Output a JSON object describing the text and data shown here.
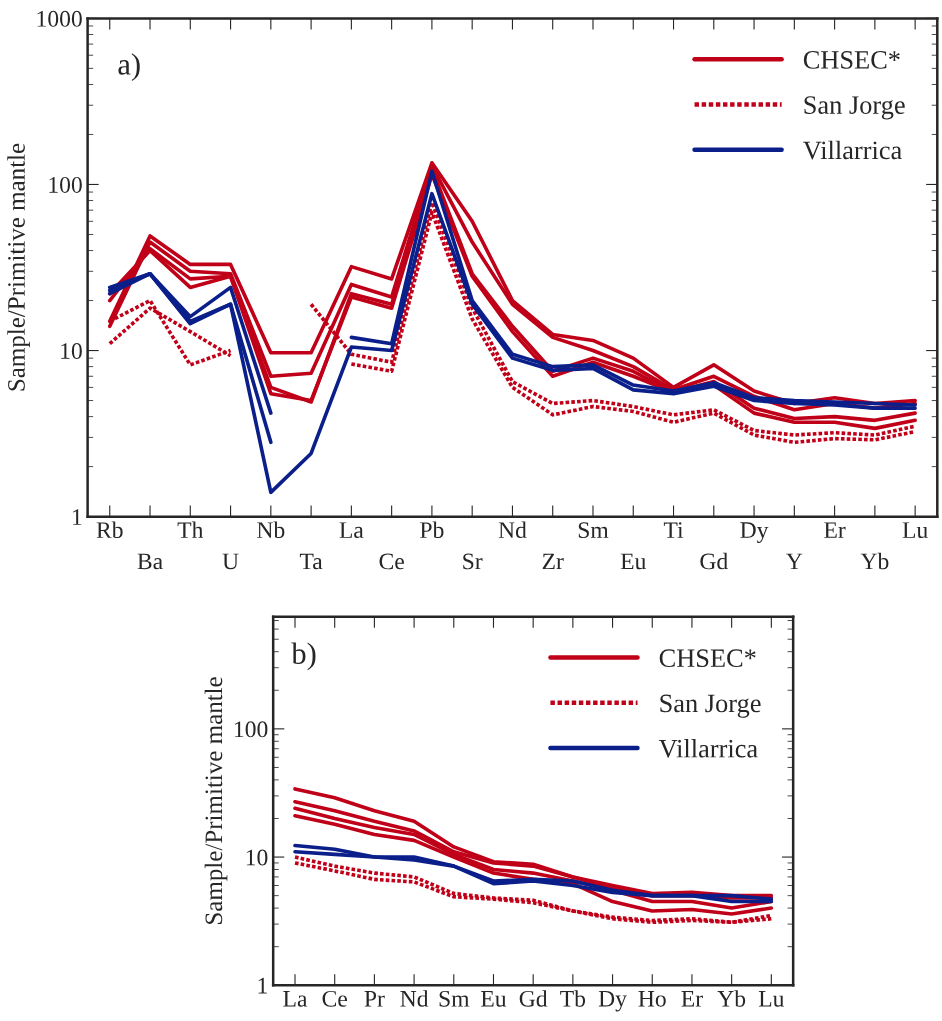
{
  "chart_data": [
    {
      "type": "line",
      "annotations": [
        "a)"
      ],
      "ylabel": "Sample/Primitive mantle",
      "log": "y",
      "ylim": [
        1,
        1000
      ],
      "yticks": [
        1,
        10,
        100,
        1000
      ],
      "legend": "top right",
      "grid": false,
      "marker": "none",
      "categories": [
        "Rb",
        "Ba",
        "Th",
        "U",
        "Nb",
        "Ta",
        "La",
        "Ce",
        "Pb",
        "Sr",
        "Nd",
        "Zr",
        "Sm",
        "Eu",
        "Ti",
        "Gd",
        "Dy",
        "Y",
        "Er",
        "Yb",
        "Lu"
      ],
      "series": [
        {
          "name": "CHSEC*",
          "color": "#c00018",
          "line_style": "solid",
          "values": [
            15,
            49,
            33,
            33,
            9.7,
            9.7,
            32,
            27,
            135,
            60,
            20,
            12.5,
            11.5,
            9,
            6,
            8.2,
            5.7,
            4.8,
            5.2,
            4.8,
            5.0
          ]
        },
        {
          "color": "#c00018",
          "line_style": "solid",
          "values": [
            14,
            45,
            30,
            29,
            7,
            7.3,
            25,
            21,
            130,
            45,
            19,
            12,
            10,
            8,
            5.8,
            7,
            5.3,
            4.4,
            4.8,
            4.5,
            4.8
          ]
        },
        {
          "color": "#c00018",
          "line_style": "solid",
          "values": [
            20,
            41,
            27,
            28,
            6,
            4.9,
            22,
            19,
            125,
            29,
            14,
            7.5,
            9,
            7.5,
            5.6,
            6.5,
            4.5,
            3.9,
            4.0,
            3.8,
            4.2
          ]
        },
        {
          "color": "#c00018",
          "line_style": "solid",
          "values": [
            22,
            40,
            24,
            28,
            5.5,
            5,
            21,
            18,
            115,
            28,
            13,
            7,
            8.5,
            7,
            5.6,
            6.2,
            4.2,
            3.7,
            3.7,
            3.4,
            3.8
          ]
        },
        {
          "name": "San Jorge",
          "color": "#c00018",
          "line_style": "dotted",
          "values": [
            11,
            18,
            13,
            9.3,
            null,
            19,
            9.5,
            8.5,
            78,
            18,
            6.5,
            4.8,
            5,
            4.6,
            4.1,
            4.4,
            3.3,
            3.1,
            3.2,
            3.1,
            3.5
          ]
        },
        {
          "color": "#c00018",
          "line_style": "dotted",
          "values": [
            15,
            20,
            8.2,
            10,
            null,
            null,
            8.3,
            7.5,
            68,
            15.5,
            6,
            4.1,
            4.6,
            4.3,
            3.7,
            4.2,
            3.1,
            2.8,
            2.95,
            2.9,
            3.25
          ]
        },
        {
          "name": "Villarrica",
          "color": "#0a1f8a",
          "line_style": "solid",
          "values": [
            23,
            29,
            14.5,
            19,
            1.4,
            2.4,
            10.5,
            10,
            88,
            19,
            9,
            7.6,
            7.8,
            5.8,
            5.5,
            6.1,
            5.0,
            4.8,
            4.7,
            4.5,
            4.5
          ]
        },
        {
          "color": "#0a1f8a",
          "line_style": "solid",
          "values": [
            22,
            29,
            16,
            24,
            4.2,
            null,
            12,
            11,
            120,
            20,
            9.5,
            8,
            8.2,
            6.2,
            5.7,
            6.4,
            5.2,
            5.0,
            4.9,
            4.8,
            4.7
          ]
        },
        {
          "color": "#0a1f8a",
          "line_style": "solid",
          "values": [
            24,
            29,
            15,
            19,
            2.8,
            null,
            null,
            null,
            null,
            null,
            null,
            null,
            null,
            null,
            null,
            null,
            null,
            null,
            null,
            null,
            null
          ]
        }
      ]
    },
    {
      "type": "line",
      "annotations": [
        "b)"
      ],
      "ylabel": "Sample/Primitive mantle",
      "log": "y",
      "ylim": [
        1,
        750
      ],
      "yticks": [
        1,
        10,
        100
      ],
      "legend": "top right",
      "grid": false,
      "marker": "none",
      "categories": [
        "La",
        "Ce",
        "Pr",
        "Nd",
        "Sm",
        "Eu",
        "Gd",
        "Tb",
        "Dy",
        "Ho",
        "Er",
        "Yb",
        "Lu"
      ],
      "series": [
        {
          "name": "CHSEC*",
          "color": "#c00018",
          "line_style": "solid",
          "values": [
            34,
            29,
            23,
            19,
            12,
            9.2,
            8.8,
            7,
            6,
            5.2,
            5.3,
            5,
            5
          ]
        },
        {
          "color": "#c00018",
          "line_style": "solid",
          "values": [
            27,
            23,
            19,
            16,
            11,
            9,
            8.5,
            7,
            5.7,
            5,
            5,
            4.8,
            4.8
          ]
        },
        {
          "color": "#c00018",
          "line_style": "solid",
          "values": [
            24,
            20,
            17,
            15,
            10.5,
            8,
            7.5,
            6.5,
            5.5,
            4.5,
            4.5,
            4,
            4.5
          ]
        },
        {
          "color": "#c00018",
          "line_style": "solid",
          "values": [
            21,
            18,
            15,
            13.5,
            10,
            7.5,
            6.7,
            6.2,
            4.5,
            3.8,
            3.9,
            3.6,
            4
          ]
        },
        {
          "name": "San Jorge",
          "color": "#c00018",
          "line_style": "dotted",
          "values": [
            10,
            8.5,
            7.5,
            7,
            5.2,
            4.8,
            4.6,
            3.8,
            3.4,
            3.2,
            3.3,
            3.1,
            3.5
          ]
        },
        {
          "color": "#c00018",
          "line_style": "dotted",
          "values": [
            9,
            7.8,
            6.7,
            6.4,
            4.9,
            4.7,
            4.4,
            3.8,
            3.3,
            3.1,
            3.2,
            3.1,
            3.3
          ]
        },
        {
          "name": "Villarrica",
          "color": "#0a1f8a",
          "line_style": "solid",
          "values": [
            12.3,
            11.5,
            10,
            10,
            8.5,
            6.5,
            6.7,
            6.5,
            5.5,
            5,
            5,
            4.5,
            4.5
          ]
        },
        {
          "color": "#0a1f8a",
          "line_style": "solid",
          "values": [
            11,
            10.5,
            10,
            9.5,
            8.5,
            6.2,
            6.5,
            6,
            5.3,
            5,
            5,
            5,
            4.7
          ]
        }
      ]
    }
  ]
}
